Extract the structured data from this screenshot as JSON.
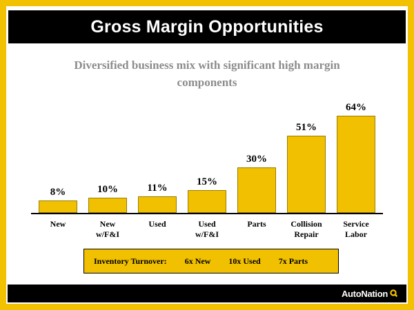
{
  "slide": {
    "title": "Gross Margin Opportunities",
    "subtitle": "Diversified business mix with significant  high margin components"
  },
  "chart_data": {
    "type": "bar",
    "categories": [
      "New",
      "New w/F&I",
      "Used",
      "Used w/F&I",
      "Parts",
      "Collision\nRepair",
      "Service\nLabor"
    ],
    "values": [
      8,
      10,
      11,
      15,
      30,
      51,
      64
    ],
    "value_labels": [
      "8%",
      "10%",
      "11%",
      "15%",
      "30%",
      "51%",
      "64%"
    ],
    "title": "",
    "xlabel": "",
    "ylabel": "",
    "ylim": [
      0,
      70
    ],
    "grid": false,
    "legend": false,
    "bar_color": "#F0C001"
  },
  "inventory": {
    "label": "Inventory Turnover:",
    "items": [
      "6x  New",
      "10x  Used",
      "7x  Parts"
    ]
  },
  "footer": {
    "brand": "AutoNation"
  },
  "colors": {
    "accent_yellow": "#F2C101",
    "title_bg": "#000000",
    "subtitle_gray": "#8C8C8C"
  }
}
